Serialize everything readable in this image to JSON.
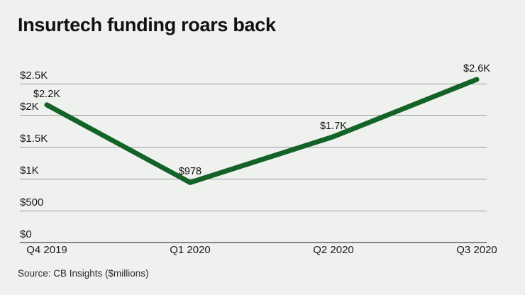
{
  "chart": {
    "title": "Insurtech funding roars back",
    "source": "Source: CB Insights ($millions)"
  },
  "colors": {
    "background": "#eff1ee",
    "line": "#136328",
    "gridline": "#9c9c9c",
    "zero_axis": "#868686",
    "text": "#1a1a1a"
  },
  "chart_data": {
    "type": "line",
    "title": "Insurtech funding roars back",
    "categories": [
      "Q4 2019",
      "Q1 2020",
      "Q2 2020",
      "Q3 2020"
    ],
    "values": [
      2200,
      978,
      1700,
      2600
    ],
    "value_labels": [
      "$2.2K",
      "$978",
      "$1.7K",
      "$2.6K"
    ],
    "xlabel": "",
    "ylabel": "",
    "ylim": [
      0,
      2500
    ],
    "yticks": {
      "values": [
        0,
        500,
        1000,
        1500,
        2000,
        2500
      ],
      "labels": [
        "$0",
        "$500",
        "$1K",
        "$1.5K",
        "$2K",
        "$2.5K"
      ]
    },
    "grid": true,
    "legend": "none",
    "units": "$millions",
    "source": "Source: CB Insights ($millions)"
  }
}
